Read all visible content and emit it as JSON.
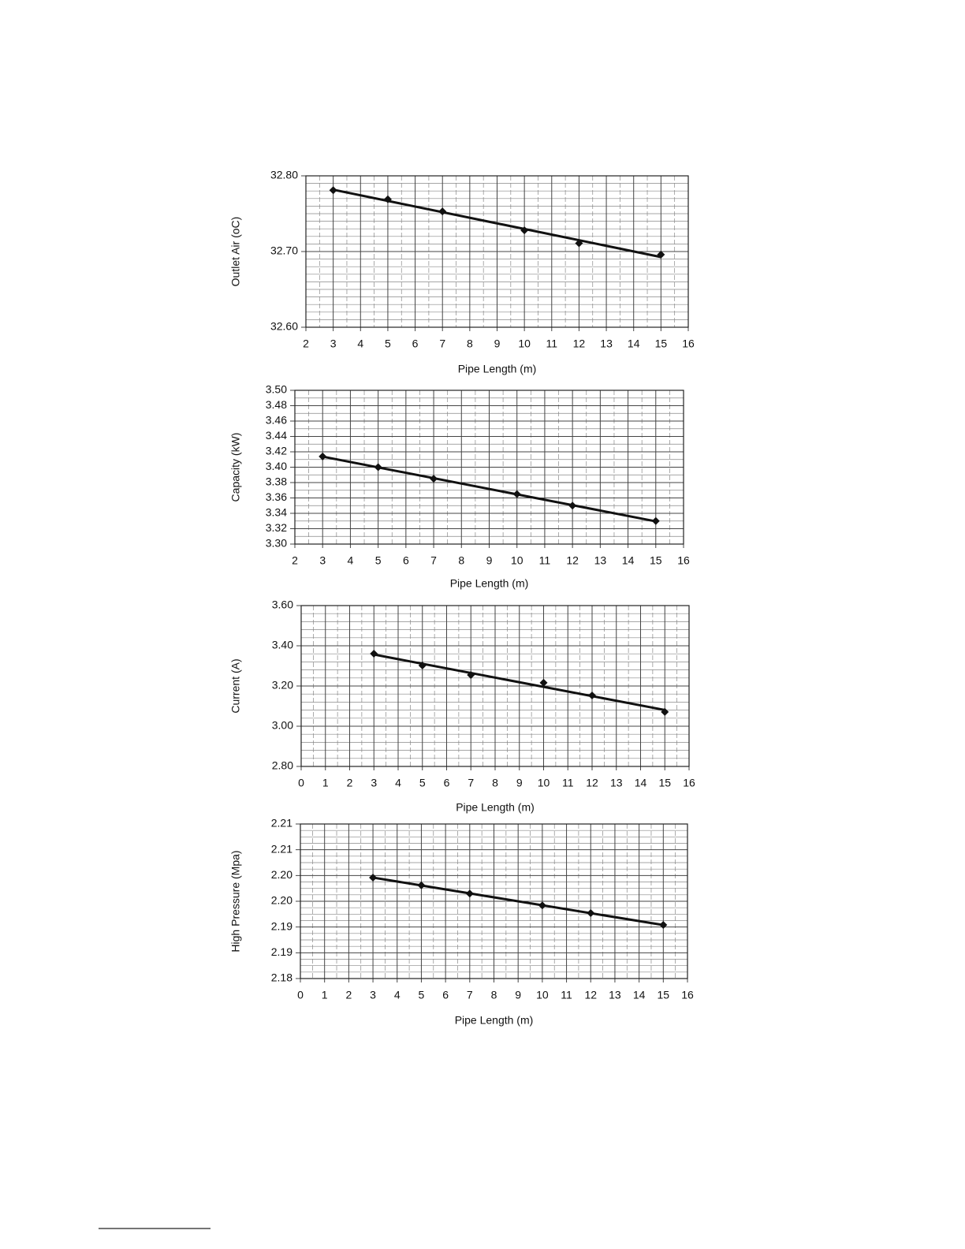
{
  "chart_data": [
    {
      "type": "scatter",
      "xlabel": "Pipe Length (m)",
      "ylabel": "Outlet Air (oC)",
      "color": "#111111",
      "grid": true,
      "x": [
        3,
        5,
        7,
        10,
        12,
        15
      ],
      "values": [
        32.781,
        32.769,
        32.753,
        32.728,
        32.711,
        32.696
      ],
      "xlim": [
        2,
        16
      ],
      "xticks": [
        2,
        3,
        4,
        5,
        6,
        7,
        8,
        9,
        10,
        11,
        12,
        13,
        14,
        15,
        16
      ],
      "ylim": [
        32.6,
        32.8
      ],
      "yticks": [
        {
          "value": 32.6,
          "label": "32.60"
        },
        {
          "value": 32.7,
          "label": "32.70"
        },
        {
          "value": 32.8,
          "label": "32.80"
        }
      ]
    },
    {
      "type": "scatter",
      "xlabel": "Pipe Length (m)",
      "ylabel": "Capacity (kW)",
      "color": "#111111",
      "grid": true,
      "x": [
        3,
        5,
        7,
        10,
        12,
        15
      ],
      "values": [
        3.414,
        3.4,
        3.385,
        3.365,
        3.35,
        3.33
      ],
      "xlim": [
        2,
        16
      ],
      "xticks": [
        2,
        3,
        4,
        5,
        6,
        7,
        8,
        9,
        10,
        11,
        12,
        13,
        14,
        15,
        16
      ],
      "ylim": [
        3.3,
        3.5
      ],
      "yticks": [
        {
          "value": 3.3,
          "label": "3.30"
        },
        3.32,
        3.34,
        3.36,
        3.38,
        {
          "value": 3.4,
          "label": "3.40"
        },
        3.42,
        3.44,
        3.46,
        3.48,
        {
          "value": 3.5,
          "label": "3.50"
        }
      ]
    },
    {
      "type": "scatter",
      "xlabel": "Pipe Length (m)",
      "ylabel": "Current (A)",
      "color": "#111111",
      "grid": true,
      "x": [
        3,
        5,
        7,
        10,
        12,
        15
      ],
      "values": [
        3.361,
        3.302,
        3.255,
        3.216,
        3.153,
        3.071
      ],
      "xlim": [
        0,
        16
      ],
      "xticks": [
        0,
        1,
        2,
        3,
        4,
        5,
        6,
        7,
        8,
        9,
        10,
        11,
        12,
        13,
        14,
        15,
        16
      ],
      "ylim": [
        2.8,
        3.6
      ],
      "yticks": [
        {
          "value": 2.8,
          "label": "2.80"
        },
        {
          "value": 3.0,
          "label": "3.00"
        },
        {
          "value": 3.2,
          "label": "3.20"
        },
        {
          "value": 3.4,
          "label": "3.40"
        },
        {
          "value": 3.6,
          "label": "3.60"
        }
      ]
    },
    {
      "type": "scatter",
      "xlabel": "Pipe Length (m)",
      "ylabel": "High Pressure (Mpa)",
      "color": "#111111",
      "grid": true,
      "x": [
        3,
        5,
        7,
        10,
        12,
        15
      ],
      "values": [
        2.1996,
        2.1981,
        2.1965,
        2.1942,
        2.1927,
        2.1904
      ],
      "xlim": [
        0,
        16
      ],
      "xticks": [
        0,
        1,
        2,
        3,
        4,
        5,
        6,
        7,
        8,
        9,
        10,
        11,
        12,
        13,
        14,
        15,
        16
      ],
      "ylim": [
        2.18,
        2.21
      ],
      "yticks": [
        2.18,
        {
          "value": 2.185,
          "label": "2.19"
        },
        2.19,
        {
          "value": 2.195,
          "label": "2.20"
        },
        {
          "value": 2.2,
          "label": "2.20"
        },
        {
          "value": 2.205,
          "label": "2.21"
        },
        {
          "value": 2.21,
          "label": "2.21"
        }
      ]
    }
  ]
}
